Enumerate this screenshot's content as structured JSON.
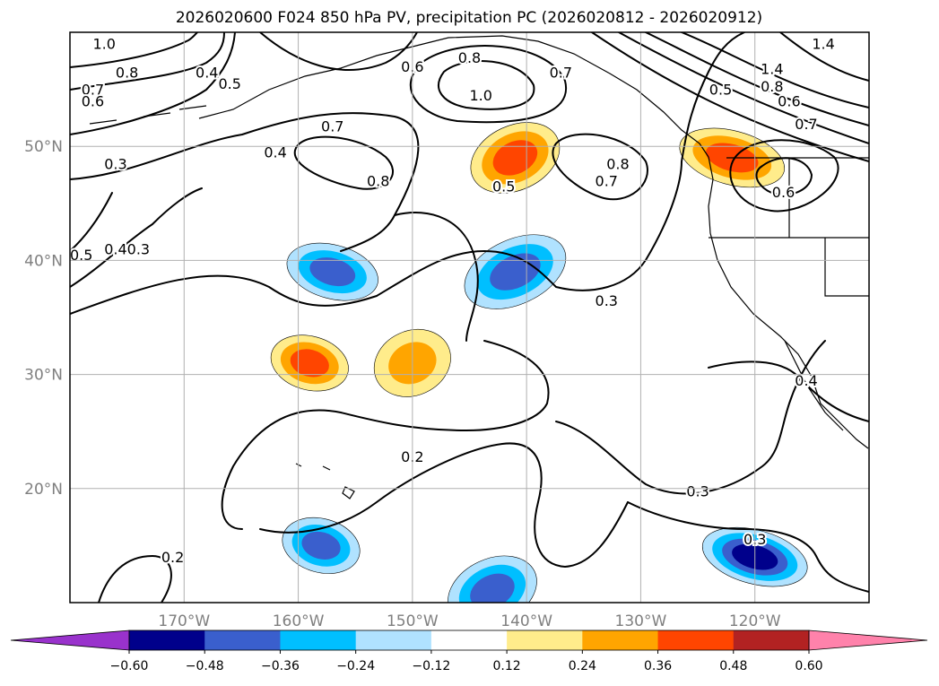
{
  "chart_data": {
    "type": "heatmap",
    "title": "2026020600 F024 850 hPa PV, precipitation PC (2026020812 - 2026020912)",
    "map_extent": {
      "lon": [
        -180,
        -110
      ],
      "lat": [
        10,
        60
      ]
    },
    "x_ticks": [
      {
        "lon": -170,
        "label": "170°W"
      },
      {
        "lon": -160,
        "label": "160°W"
      },
      {
        "lon": -150,
        "label": "150°W"
      },
      {
        "lon": -140,
        "label": "140°W"
      },
      {
        "lon": -130,
        "label": "130°W"
      },
      {
        "lon": -120,
        "label": "120°W"
      }
    ],
    "y_ticks": [
      {
        "lat": 50,
        "label": "50°N"
      },
      {
        "lat": 40,
        "label": "40°N"
      },
      {
        "lat": 30,
        "label": "30°N"
      },
      {
        "lat": 20,
        "label": "20°N"
      }
    ],
    "colorbar": {
      "labels": [
        "−0.60",
        "−0.48",
        "−0.36",
        "−0.24",
        "−0.12",
        "0.12",
        "0.24",
        "0.36",
        "0.48",
        "0.60"
      ],
      "colors": [
        "#9932cc",
        "#00008b",
        "#3a5fcd",
        "#00bfff",
        "#b0e2ff",
        "#ffffff",
        "#ffec8b",
        "#ffa500",
        "#ff4500",
        "#b22222",
        "#ff82ab"
      ]
    },
    "pc_regions": [
      {
        "name": "hawaii-north-positive",
        "lon": -159,
        "lat": 31,
        "value": 0.4
      },
      {
        "name": "gulf-of-alaska-positive",
        "lon": -141,
        "lat": 49,
        "value": 0.38
      },
      {
        "name": "pacific-northwest-positive",
        "lon": -122,
        "lat": 49,
        "value": 0.45
      },
      {
        "name": "subtropical-positive",
        "lon": -150,
        "lat": 31,
        "value": 0.25
      },
      {
        "name": "west-coast-negative-1",
        "lon": -157,
        "lat": 39,
        "value": -0.4
      },
      {
        "name": "west-coast-negative-2",
        "lon": -141,
        "lat": 39,
        "value": -0.36
      },
      {
        "name": "south-negative-1",
        "lon": -158,
        "lat": 15,
        "value": -0.42
      },
      {
        "name": "south-negative-2",
        "lon": -143,
        "lat": 11,
        "value": -0.4
      },
      {
        "name": "south-negative-3",
        "lon": -120,
        "lat": 14,
        "value": -0.55
      }
    ],
    "contour_labels": [
      {
        "text": "1.0",
        "lon": -177,
        "lat": 59
      },
      {
        "text": "0.8",
        "lon": -175,
        "lat": 56.5
      },
      {
        "text": "0.7",
        "lon": -178,
        "lat": 55
      },
      {
        "text": "0.6",
        "lon": -178,
        "lat": 54
      },
      {
        "text": "0.4",
        "lon": -168,
        "lat": 56.5
      },
      {
        "text": "0.5",
        "lon": -166,
        "lat": 55.5
      },
      {
        "text": "0.6",
        "lon": -150,
        "lat": 57
      },
      {
        "text": "0.8",
        "lon": -145,
        "lat": 57.8
      },
      {
        "text": "1.0",
        "lon": -144,
        "lat": 54.5
      },
      {
        "text": "0.7",
        "lon": -137,
        "lat": 56.5
      },
      {
        "text": "0.7",
        "lon": -157,
        "lat": 51.8
      },
      {
        "text": "0.4",
        "lon": -162,
        "lat": 49.5
      },
      {
        "text": "0.3",
        "lon": -176,
        "lat": 48.5
      },
      {
        "text": "0.8",
        "lon": -153,
        "lat": 47
      },
      {
        "text": "0.5",
        "lon": -142,
        "lat": 46.5
      },
      {
        "text": "0.8",
        "lon": -132,
        "lat": 48.5
      },
      {
        "text": "0.7",
        "lon": -133,
        "lat": 47
      },
      {
        "text": "0.5",
        "lon": -123,
        "lat": 55
      },
      {
        "text": "1.4",
        "lon": -114,
        "lat": 59
      },
      {
        "text": "1.4",
        "lon": -118.5,
        "lat": 56.8
      },
      {
        "text": "0.8",
        "lon": -118.5,
        "lat": 55.3
      },
      {
        "text": "0.6",
        "lon": -117,
        "lat": 54
      },
      {
        "text": "0.7",
        "lon": -115.5,
        "lat": 52
      },
      {
        "text": "0.6",
        "lon": -117.5,
        "lat": 46
      },
      {
        "text": "0.5",
        "lon": -179,
        "lat": 40.5
      },
      {
        "text": "0.4",
        "lon": -176,
        "lat": 41
      },
      {
        "text": "0.3",
        "lon": -174,
        "lat": 41
      },
      {
        "text": "0.3",
        "lon": -133,
        "lat": 36.5
      },
      {
        "text": "0.4",
        "lon": -115.5,
        "lat": 29.5
      },
      {
        "text": "0.2",
        "lon": -150,
        "lat": 22.8
      },
      {
        "text": "0.3",
        "lon": -125,
        "lat": 19.8
      },
      {
        "text": "0.3",
        "lon": -120,
        "lat": 15.6
      },
      {
        "text": "0.2",
        "lon": -171,
        "lat": 14
      }
    ]
  }
}
